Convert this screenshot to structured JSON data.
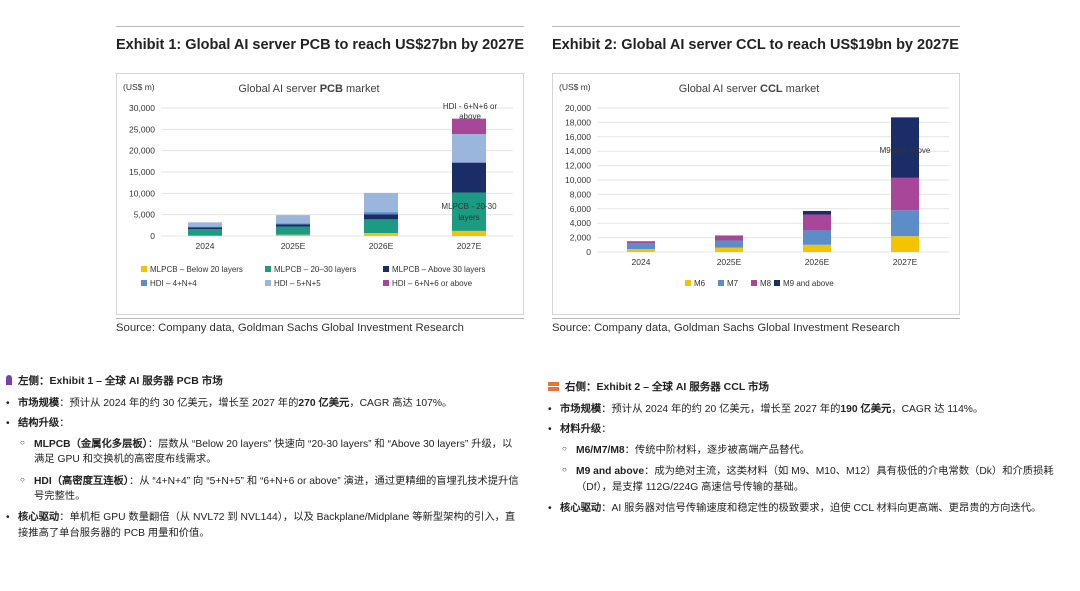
{
  "exhibit1": {
    "title": "Exhibit 1: Global AI server PCB to reach US$27bn by 2027E",
    "source": "Source: Company data, Goldman Sachs Global Investment Research"
  },
  "exhibit2": {
    "title": "Exhibit 2: Global AI server CCL to reach US$19bn by 2027E",
    "source": "Source: Company data, Goldman Sachs Global Investment Research"
  },
  "chart_data": [
    {
      "type": "bar",
      "stacked": true,
      "title_plain": "Global AI server ",
      "title_bold": "PCB",
      "title_suffix": " market",
      "ylabel": "(US$ m)",
      "ylim": [
        0,
        30000
      ],
      "yticks": [
        0,
        5000,
        10000,
        15000,
        20000,
        25000,
        30000
      ],
      "ytick_labels": [
        "0",
        "5,000",
        "10,000",
        "15,000",
        "20,000",
        "25,000",
        "30,000"
      ],
      "categories": [
        "2024",
        "2025E",
        "2026E",
        "2027E"
      ],
      "grid": true,
      "legend_position": "bottom",
      "series": [
        {
          "name": "MLPCB - Below 20 layers",
          "color": "#f5c400",
          "values": [
            100,
            300,
            700,
            1200
          ]
        },
        {
          "name": "MLPCB - 20-30 layers",
          "color": "#1a9b82",
          "values": [
            1500,
            1900,
            3200,
            9000
          ]
        },
        {
          "name": "MLPCB - Above 30 layers",
          "color": "#1b2d66",
          "values": [
            400,
            500,
            1200,
            7000
          ]
        },
        {
          "name": "HDI - 4+N+4",
          "color": "#5b8ec9",
          "values": [
            200,
            300,
            500,
            0
          ]
        },
        {
          "name": "HDI - 5+N+5",
          "color": "#9bb6dc",
          "values": [
            1000,
            1900,
            4500,
            6700
          ]
        },
        {
          "name": "HDI - 6+N+6 or above",
          "color": "#a8479a",
          "values": [
            0,
            0,
            0,
            3600
          ]
        }
      ],
      "legend_labels": [
        "MLPCB – Below 20 layers",
        "MLPCB – 20–30 layers",
        "MLPCB – Above 30 layers",
        "HDI – 4+N+4",
        "HDI – 5+N+5",
        "HDI – 6+N+6 or above"
      ],
      "annotations": [
        "HDI - 6+N+6 or",
        "above",
        "MLPCB - 20-30",
        "layers"
      ]
    },
    {
      "type": "bar",
      "stacked": true,
      "title_plain": "Global AI server ",
      "title_bold": "CCL",
      "title_suffix": " market",
      "ylabel": "(US$ m)",
      "ylim": [
        0,
        20000
      ],
      "yticks": [
        0,
        2000,
        4000,
        6000,
        8000,
        10000,
        12000,
        14000,
        16000,
        18000,
        20000
      ],
      "ytick_labels": [
        "0",
        "2,000",
        "4,000",
        "6,000",
        "8,000",
        "10,000",
        "12,000",
        "14,000",
        "16,000",
        "18,000",
        "20,000"
      ],
      "categories": [
        "2024",
        "2025E",
        "2026E",
        "2027E"
      ],
      "grid": true,
      "legend_position": "bottom",
      "series": [
        {
          "name": "M6",
          "color": "#f5c400",
          "values": [
            400,
            600,
            1000,
            2200
          ]
        },
        {
          "name": "M7",
          "color": "#5b8ec9",
          "values": [
            800,
            1000,
            2000,
            3600
          ]
        },
        {
          "name": "M8",
          "color": "#a8479a",
          "values": [
            300,
            700,
            2200,
            4500
          ]
        },
        {
          "name": "M9 and above",
          "color": "#1b2d66",
          "values": [
            0,
            0,
            500,
            8400
          ]
        }
      ],
      "legend_labels": [
        "M6",
        "M7",
        "M8",
        "M9 and above"
      ],
      "annotations": [
        "M9 and above"
      ]
    }
  ],
  "notes_left": {
    "head": "左侧：Exhibit 1 – 全球 AI 服务器 PCB 市场",
    "b1_label": "市场规模",
    "b1_text_a": "：预计从 2024 年的约 30 亿美元，增长至 2027 年的",
    "b1_bold": "270 亿美元",
    "b1_text_b": "，CAGR 高达 107%。",
    "b2_label": "结构升级",
    "b2_colon": "：",
    "s1_label": "MLPCB（金属化多层板）",
    "s1_text": "：层数从 “Below 20 layers” 快速向 “20-30 layers” 和 “Above 30 layers” 升级，以满足 GPU 和交换机的高密度布线需求。",
    "s2_label": "HDI（高密度互连板）",
    "s2_text": "：从 “4+N+4” 向 “5+N+5” 和 “6+N+6 or above” 演进，通过更精细的盲埋孔技术提升信号完整性。",
    "b3_label": "核心驱动",
    "b3_text": "：单机柜 GPU 数量翻倍（从 NVL72 到 NVL144），以及 Backplane/Midplane 等新型架构的引入，直接推高了单台服务器的 PCB 用量和价值。"
  },
  "notes_right": {
    "head": "右侧：Exhibit 2 – 全球 AI 服务器 CCL 市场",
    "b1_label": "市场规模",
    "b1_text_a": "：预计从 2024 年的约 20 亿美元，增长至 2027 年的",
    "b1_bold": "190 亿美元",
    "b1_text_b": "，CAGR 达 114%。",
    "b2_label": "材料升级",
    "b2_colon": "：",
    "s1_label": "M6/M7/M8",
    "s1_text": "：传统中阶材料，逐步被高端产品替代。",
    "s2_label": "M9 and above",
    "s2_text": "：成为绝对主流，这类材料（如 M9、M10、M12）具有极低的介电常数（Dk）和介质损耗（Df），是支撑 112G/224G 高速信号传输的基础。",
    "b3_label": "核心驱动",
    "b3_text": "：AI 服务器对信号传输速度和稳定性的极致要求，迫使 CCL 材料向更高端、更昂贵的方向迭代。"
  }
}
